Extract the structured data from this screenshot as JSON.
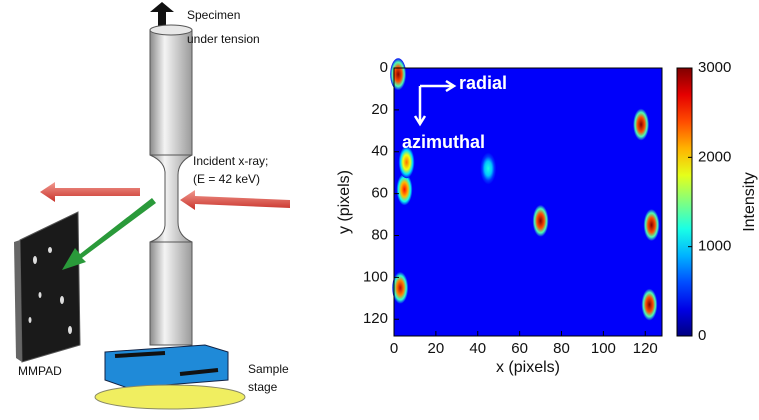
{
  "diagram": {
    "specimen": [
      "Specimen",
      "under tension"
    ],
    "xray": [
      "Incident x-ray;",
      "(E = 42 keV)"
    ],
    "detector": "MMPAD",
    "stage": [
      "Sample",
      "stage"
    ]
  },
  "chart_data": {
    "type": "heatmap",
    "xlabel": "x (pixels)",
    "ylabel": "y (pixels)",
    "xlim": [
      0,
      128
    ],
    "ylim": [
      128,
      0
    ],
    "xticks": [
      0,
      20,
      40,
      60,
      80,
      100,
      120
    ],
    "yticks": [
      0,
      20,
      40,
      60,
      80,
      100,
      120
    ],
    "annotations": [
      "radial",
      "azimuthal"
    ],
    "colorbar": {
      "label": "Intensity",
      "lim": [
        0,
        3000
      ],
      "ticks": [
        0,
        1000,
        2000,
        3000
      ],
      "colormap": "jet"
    },
    "spots": {
      "x": [
        2,
        118,
        70,
        123,
        122,
        3,
        5,
        6,
        45
      ],
      "y": [
        3,
        27,
        73,
        75,
        113,
        105,
        58,
        45,
        48
      ],
      "intensity": [
        3000,
        3000,
        3000,
        3000,
        3000,
        2800,
        2600,
        2300,
        1200
      ]
    }
  }
}
